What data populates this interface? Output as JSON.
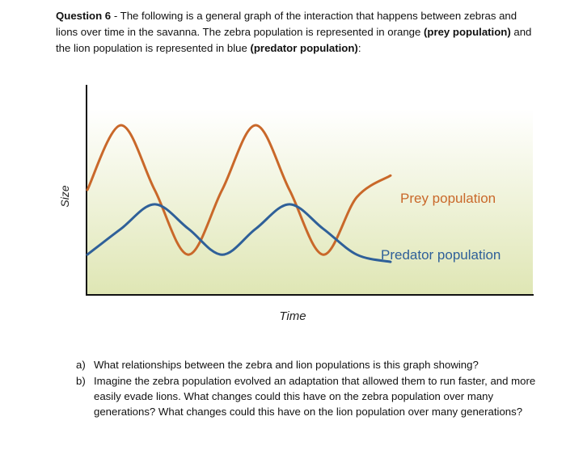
{
  "question": {
    "number": "Question 6",
    "separator": " - ",
    "text_1": "The following is a general graph of the interaction that happens between zebras and lions over time in the savanna. The zebra population is represented in orange ",
    "bold_1": "(prey population)",
    "text_2": " and the lion population is represented in blue ",
    "bold_2": "(predator population)",
    "text_3": ":"
  },
  "chart_data": {
    "type": "line",
    "xlabel": "Time",
    "ylabel": "Size",
    "grid": false,
    "colors": {
      "prey": "#c9682a",
      "predator": "#2f6099",
      "background_top": "#ffffff",
      "background_bottom": "#dfe6b4"
    },
    "series": [
      {
        "name": "Prey population",
        "color": "#c9682a",
        "x": [
          0,
          0.5,
          1,
          1.5,
          2,
          2.5,
          3,
          3.5,
          4,
          4.5
        ],
        "y": [
          0.55,
          1.0,
          0.55,
          0.1,
          0.55,
          1.0,
          0.55,
          0.1,
          0.5,
          0.65
        ]
      },
      {
        "name": "Predator population",
        "color": "#2f6099",
        "x": [
          0,
          0.5,
          1,
          1.5,
          2,
          2.5,
          3,
          3.5,
          4,
          4.5
        ],
        "y": [
          0.1,
          0.28,
          0.45,
          0.28,
          0.1,
          0.28,
          0.45,
          0.28,
          0.1,
          0.05
        ]
      }
    ]
  },
  "tasks": [
    {
      "marker": "a)",
      "text": "What relationships between the zebra and lion populations is this graph showing?"
    },
    {
      "marker": "b)",
      "text": "Imagine the zebra population evolved an adaptation that allowed them to run faster, and more easily evade lions. What changes could this have on the zebra population over many generations? What changes could this have on the lion population over many generations?"
    }
  ]
}
